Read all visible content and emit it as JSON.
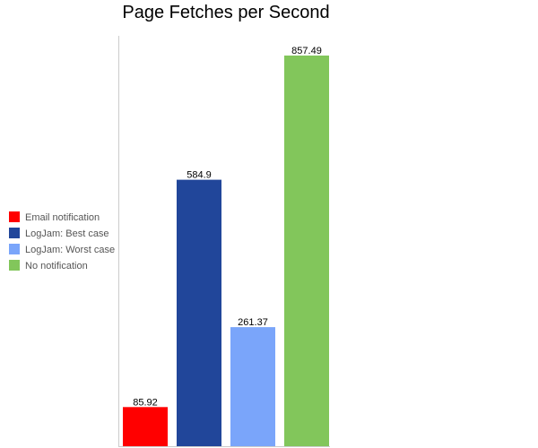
{
  "chart_data": {
    "type": "bar",
    "title": "Page Fetches per Second",
    "xlabel": "",
    "ylabel": "",
    "ylim": [
      0,
      857.49
    ],
    "grid": false,
    "legend_position": "left",
    "series": [
      {
        "name": "Email notification",
        "value": 85.92,
        "label": "85.92",
        "color": "#ff0000"
      },
      {
        "name": "LogJam: Best case",
        "value": 584.9,
        "label": "584.9",
        "color": "#21469a"
      },
      {
        "name": "LogJam: Worst case",
        "value": 261.37,
        "label": "261.37",
        "color": "#7aa5fa"
      },
      {
        "name": "No notification",
        "value": 857.49,
        "label": "857.49",
        "color": "#82c65b"
      }
    ]
  }
}
